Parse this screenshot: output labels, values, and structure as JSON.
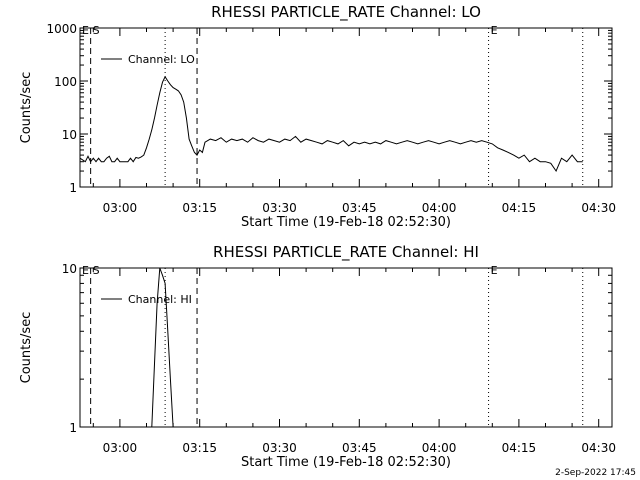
{
  "chart_data": [
    {
      "type": "line",
      "title": "RHESSI PARTICLE_RATE Channel: LO",
      "xlabel": "Start Time (19-Feb-18 02:52:30)",
      "ylabel": "Counts/sec",
      "yscale": "log",
      "ylim": [
        1,
        1000
      ],
      "y_ticks": [
        "1",
        "10",
        "100",
        "1000"
      ],
      "x_ticks": [
        "03:00",
        "03:15",
        "03:30",
        "03:45",
        "04:00",
        "04:15",
        "04:30"
      ],
      "x_tick_minutes": [
        180,
        195,
        210,
        225,
        240,
        255,
        270
      ],
      "xlim_minutes": [
        172.5,
        272.5
      ],
      "legend": {
        "label": "Channel: LO",
        "position": "top-left"
      },
      "markers": [
        {
          "label": "E",
          "minute": 172.5,
          "style": "none"
        },
        {
          "label": "S",
          "minute": 174.5,
          "style": "dashed"
        },
        {
          "label": "",
          "minute": 188.5,
          "style": "dotted"
        },
        {
          "label": "",
          "minute": 194.5,
          "style": "dashed"
        },
        {
          "label": "E",
          "minute": 249.3,
          "style": "dotted"
        },
        {
          "label": "",
          "minute": 267.0,
          "style": "dotted"
        }
      ],
      "series": [
        {
          "color": "#000000",
          "x": [
            172.5,
            173.5,
            174.0,
            174.5,
            175.0,
            175.5,
            176.0,
            176.5,
            177.0,
            177.5,
            178.0,
            178.5,
            179.0,
            179.5,
            180.0,
            180.5,
            181.0,
            181.5,
            182.0,
            182.5,
            183.0,
            183.5,
            184.0,
            184.5,
            185.0,
            185.5,
            186.0,
            186.5,
            187.0,
            187.5,
            188.0,
            188.5,
            189.0,
            189.5,
            190.0,
            190.5,
            191.0,
            191.5,
            192.0,
            192.5,
            193.0,
            193.5,
            194.0,
            194.5,
            195.0,
            195.5,
            196.0,
            197.0,
            198.0,
            199.0,
            200.0,
            201.0,
            202.0,
            203.0,
            204.0,
            205.0,
            206.0,
            207.0,
            208.0,
            209.0,
            210.0,
            211.0,
            212.0,
            213.0,
            214.0,
            215.0,
            216.0,
            217.0,
            218.0,
            219.0,
            220.0,
            221.0,
            222.0,
            223.0,
            224.0,
            225.0,
            226.0,
            227.0,
            228.0,
            229.0,
            230.0,
            231.0,
            232.0,
            233.0,
            234.0,
            235.0,
            236.0,
            237.0,
            238.0,
            239.0,
            240.0,
            241.0,
            242.0,
            243.0,
            244.0,
            245.0,
            246.0,
            247.0,
            248.0,
            249.0,
            250.0,
            251.0,
            252.0,
            253.0,
            254.0,
            255.0,
            256.0,
            257.0,
            258.0,
            259.0,
            260.0,
            261.0,
            262.0,
            263.0,
            264.0,
            265.0,
            266.0,
            267.0
          ],
          "values": [
            3.5,
            3.0,
            3.8,
            3.0,
            3.5,
            3.0,
            3.5,
            3.0,
            3.0,
            3.5,
            3.8,
            3.0,
            3.0,
            3.5,
            3.0,
            3.0,
            3.0,
            3.0,
            3.5,
            3.0,
            3.6,
            3.5,
            3.7,
            4.0,
            5.5,
            8.0,
            12.0,
            20.0,
            35.0,
            60.0,
            95.0,
            120.0,
            100.0,
            85.0,
            75.0,
            70.0,
            65.0,
            55.0,
            40.0,
            20.0,
            8.0,
            6.0,
            4.5,
            4.0,
            5.0,
            4.5,
            7.0,
            8.0,
            7.5,
            8.5,
            7.0,
            8.0,
            7.5,
            8.0,
            7.0,
            8.5,
            7.5,
            7.0,
            8.0,
            7.5,
            7.0,
            8.0,
            7.5,
            9.0,
            7.0,
            8.0,
            7.5,
            7.0,
            6.5,
            7.5,
            7.0,
            6.5,
            7.5,
            6.0,
            7.0,
            6.5,
            7.0,
            6.5,
            7.0,
            6.5,
            7.5,
            7.0,
            6.5,
            7.0,
            7.5,
            7.0,
            6.5,
            7.0,
            7.5,
            7.0,
            6.5,
            7.0,
            7.5,
            7.0,
            6.5,
            7.0,
            7.5,
            7.0,
            7.5,
            7.0,
            6.5,
            5.5,
            5.0,
            4.5,
            4.0,
            3.5,
            4.0,
            3.0,
            3.5,
            3.0,
            3.0,
            2.8,
            2.0,
            3.5,
            3.0,
            4.0,
            3.0,
            3.0
          ]
        }
      ]
    },
    {
      "type": "line",
      "title": "RHESSI PARTICLE_RATE Channel: HI",
      "xlabel": "Start Time (19-Feb-18 02:52:30)",
      "ylabel": "Counts/sec",
      "yscale": "log",
      "ylim": [
        1,
        10
      ],
      "y_ticks": [
        "1",
        "10"
      ],
      "x_ticks": [
        "03:00",
        "03:15",
        "03:30",
        "03:45",
        "04:00",
        "04:15",
        "04:30"
      ],
      "x_tick_minutes": [
        180,
        195,
        210,
        225,
        240,
        255,
        270
      ],
      "xlim_minutes": [
        172.5,
        272.5
      ],
      "legend": {
        "label": "Channel: HI",
        "position": "top-left"
      },
      "markers": [
        {
          "label": "E",
          "minute": 172.5,
          "style": "none"
        },
        {
          "label": "S",
          "minute": 174.5,
          "style": "dashed"
        },
        {
          "label": "",
          "minute": 188.5,
          "style": "dotted"
        },
        {
          "label": "",
          "minute": 194.5,
          "style": "dashed"
        },
        {
          "label": "E",
          "minute": 249.3,
          "style": "dotted"
        },
        {
          "label": "",
          "minute": 267.0,
          "style": "dotted"
        }
      ],
      "series": [
        {
          "color": "#000000",
          "x": [
            186.0,
            186.5,
            187.0,
            187.5,
            188.0,
            188.5,
            189.0,
            189.5,
            190.0
          ],
          "values": [
            1.0,
            2.5,
            6.0,
            10.5,
            9.0,
            8.0,
            4.0,
            2.0,
            1.0
          ]
        }
      ]
    }
  ],
  "timestamp": "2-Sep-2022 17:45"
}
